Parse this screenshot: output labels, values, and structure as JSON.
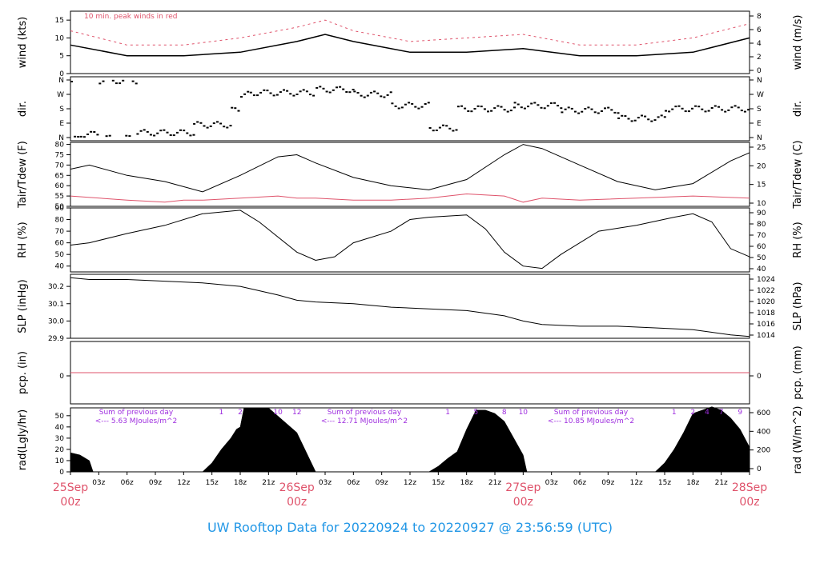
{
  "footer": "UW Rooftop Data for 20220924  to  20220927 @ 23:56:59  (UTC)",
  "colors": {
    "primary": "#000000",
    "accent": "#df536b",
    "purple": "#9f2fdf",
    "footer": "#2297e6"
  },
  "x_axis": {
    "hour_ticks": [
      "03z",
      "06z",
      "09z",
      "12z",
      "15z",
      "18z",
      "21z"
    ],
    "day_labels": [
      {
        "day": "25Sep",
        "hour": "00z"
      },
      {
        "day": "26Sep",
        "hour": "00z"
      },
      {
        "day": "27Sep",
        "hour": "00z"
      },
      {
        "day": "28Sep",
        "hour": "00z"
      }
    ]
  },
  "chart_data": [
    {
      "type": "line",
      "id": "wind",
      "ylabel_left": "wind (kts)",
      "ylabel_right": "wind (m/s)",
      "left_ticks": [
        "0",
        "5",
        "10",
        "15"
      ],
      "right_ticks": [
        "0",
        "2",
        "4",
        "6",
        "8"
      ],
      "ylim": [
        0,
        17.5
      ],
      "annotation": "10 min. peak winds in red",
      "series": [
        {
          "color": "#000000",
          "x": [
            0,
            6,
            12,
            18,
            24,
            27,
            30,
            36,
            42,
            48,
            54,
            60,
            66,
            72
          ],
          "y": [
            8,
            5,
            5,
            6,
            9,
            11,
            9,
            6,
            6,
            7,
            5,
            5,
            6,
            10
          ]
        },
        {
          "color": "#df536b",
          "x": [
            0,
            6,
            12,
            18,
            24,
            27,
            30,
            36,
            42,
            48,
            54,
            60,
            66,
            72
          ],
          "y": [
            12,
            8,
            8,
            10,
            13,
            15,
            12,
            9,
            10,
            11,
            8,
            8,
            10,
            14
          ]
        }
      ]
    },
    {
      "type": "scatter",
      "id": "dir",
      "ylabel_left": "dir.",
      "ylabel_right": "dir.",
      "left_ticks": [
        "N",
        "E",
        "S",
        "W",
        "N"
      ],
      "right_ticks": [
        "N",
        "E",
        "S",
        "W",
        "N"
      ],
      "ylim": [
        0,
        360
      ]
    },
    {
      "type": "line",
      "id": "temp",
      "ylabel_left": "Tair/Tdew (F)",
      "ylabel_right": "Tair/Tdew (C)",
      "left_ticks": [
        "50",
        "55",
        "60",
        "65",
        "70",
        "75",
        "80"
      ],
      "right_ticks": [
        "10",
        "15",
        "20",
        "25"
      ],
      "ylim": [
        50,
        81
      ],
      "series": [
        {
          "name": "Tair",
          "color": "#000000",
          "x": [
            0,
            2,
            6,
            10,
            14,
            18,
            22,
            24,
            26,
            30,
            34,
            38,
            42,
            46,
            48,
            50,
            54,
            58,
            62,
            66,
            70,
            72
          ],
          "y": [
            68,
            70,
            65,
            62,
            57,
            65,
            74,
            75,
            71,
            64,
            60,
            58,
            63,
            75,
            80,
            78,
            70,
            62,
            58,
            61,
            72,
            76
          ]
        },
        {
          "name": "Tdew",
          "color": "#df536b",
          "x": [
            0,
            6,
            10,
            12,
            14,
            18,
            22,
            24,
            26,
            30,
            34,
            38,
            42,
            46,
            48,
            50,
            54,
            60,
            66,
            72
          ],
          "y": [
            55,
            53,
            52,
            53,
            53,
            54,
            55,
            54,
            54,
            53,
            53,
            54,
            56,
            55,
            52,
            54,
            53,
            54,
            55,
            54
          ]
        }
      ]
    },
    {
      "type": "line",
      "id": "rh",
      "ylabel_left": "RH (%)",
      "ylabel_right": "RH (%)",
      "left_ticks": [
        "40",
        "50",
        "60",
        "70",
        "80",
        "90"
      ],
      "right_ticks": [
        "40",
        "50",
        "60",
        "70",
        "80",
        "90"
      ],
      "ylim": [
        35,
        90
      ],
      "series": [
        {
          "color": "#000000",
          "x": [
            0,
            2,
            6,
            10,
            14,
            18,
            20,
            24,
            26,
            28,
            30,
            34,
            36,
            38,
            42,
            44,
            46,
            48,
            50,
            52,
            56,
            60,
            64,
            66,
            68,
            70,
            72
          ],
          "y": [
            58,
            60,
            68,
            75,
            85,
            88,
            78,
            52,
            45,
            48,
            60,
            70,
            80,
            82,
            84,
            72,
            52,
            40,
            38,
            50,
            70,
            75,
            82,
            85,
            78,
            55,
            48
          ]
        }
      ]
    },
    {
      "type": "line",
      "id": "slp",
      "ylabel_left": "SLP (inHg)",
      "ylabel_right": "SLP (hPa)",
      "left_ticks": [
        "29.9",
        "30.0",
        "30.1",
        "30.2"
      ],
      "right_ticks": [
        "1014",
        "1016",
        "1018",
        "1020",
        "1022",
        "1024"
      ],
      "ylim": [
        29.9,
        30.27
      ],
      "series": [
        {
          "color": "#000000",
          "x": [
            0,
            2,
            6,
            10,
            14,
            18,
            22,
            24,
            26,
            30,
            34,
            38,
            42,
            46,
            48,
            50,
            54,
            58,
            62,
            66,
            70,
            72
          ],
          "y": [
            30.25,
            30.24,
            30.24,
            30.23,
            30.22,
            30.2,
            30.15,
            30.12,
            30.11,
            30.1,
            30.08,
            30.07,
            30.06,
            30.03,
            30.0,
            29.98,
            29.97,
            29.97,
            29.96,
            29.95,
            29.92,
            29.91
          ]
        }
      ]
    },
    {
      "type": "line",
      "id": "pcp",
      "ylabel_left": "pcp. (in)",
      "ylabel_right": "pcp. (mm)",
      "left_ticks": [
        "0"
      ],
      "right_ticks": [
        "0"
      ],
      "ylim": [
        -1,
        1
      ],
      "series": [
        {
          "color": "#df536b",
          "x": [
            0,
            72
          ],
          "y": [
            0,
            0
          ]
        }
      ]
    },
    {
      "type": "area",
      "id": "rad",
      "ylabel_left": "rad(Lgly/hr)",
      "ylabel_right": "rad (W/m^2)",
      "left_ticks": [
        "0",
        "10",
        "20",
        "30",
        "40",
        "50"
      ],
      "right_ticks": [
        "0",
        "200",
        "400",
        "600"
      ],
      "ylim": [
        0,
        57
      ],
      "series": [
        {
          "color": "#000000",
          "x": [
            0,
            1,
            2,
            2.4,
            14,
            15,
            16,
            17,
            17.6,
            18,
            18.4,
            21,
            24,
            26,
            38,
            39,
            40,
            41,
            42,
            43,
            44,
            45,
            46,
            47,
            48,
            48.4,
            62,
            63,
            64,
            65,
            66,
            67,
            68,
            69,
            70,
            71,
            72
          ],
          "y": [
            17,
            15,
            10,
            0,
            0,
            8,
            20,
            30,
            38,
            40,
            57,
            57,
            35,
            0,
            0,
            5,
            12,
            18,
            38,
            55,
            55,
            52,
            45,
            30,
            15,
            0,
            0,
            8,
            20,
            35,
            52,
            55,
            58,
            55,
            48,
            38,
            22
          ]
        }
      ],
      "daily_sums": [
        {
          "title": "Sum of previous day",
          "value": "<--- 5.63 MJoules/m^2"
        },
        {
          "title": "Sum of previous day",
          "value": "<--- 12.71 MJoules/m^2"
        },
        {
          "title": "Sum of previous day",
          "value": "<--- 10.85 MJoules/m^2"
        }
      ],
      "hour_marks": [
        {
          "x": 16,
          "label": "1"
        },
        {
          "x": 18,
          "label": "2"
        },
        {
          "x": 22,
          "label": "10"
        },
        {
          "x": 24,
          "label": "12"
        },
        {
          "x": 40,
          "label": "1"
        },
        {
          "x": 43,
          "label": "5"
        },
        {
          "x": 46,
          "label": "8"
        },
        {
          "x": 48,
          "label": "10"
        },
        {
          "x": 64,
          "label": "1"
        },
        {
          "x": 66,
          "label": "2"
        },
        {
          "x": 67.5,
          "label": "4"
        },
        {
          "x": 69,
          "label": "7"
        },
        {
          "x": 71,
          "label": "9"
        }
      ]
    }
  ]
}
